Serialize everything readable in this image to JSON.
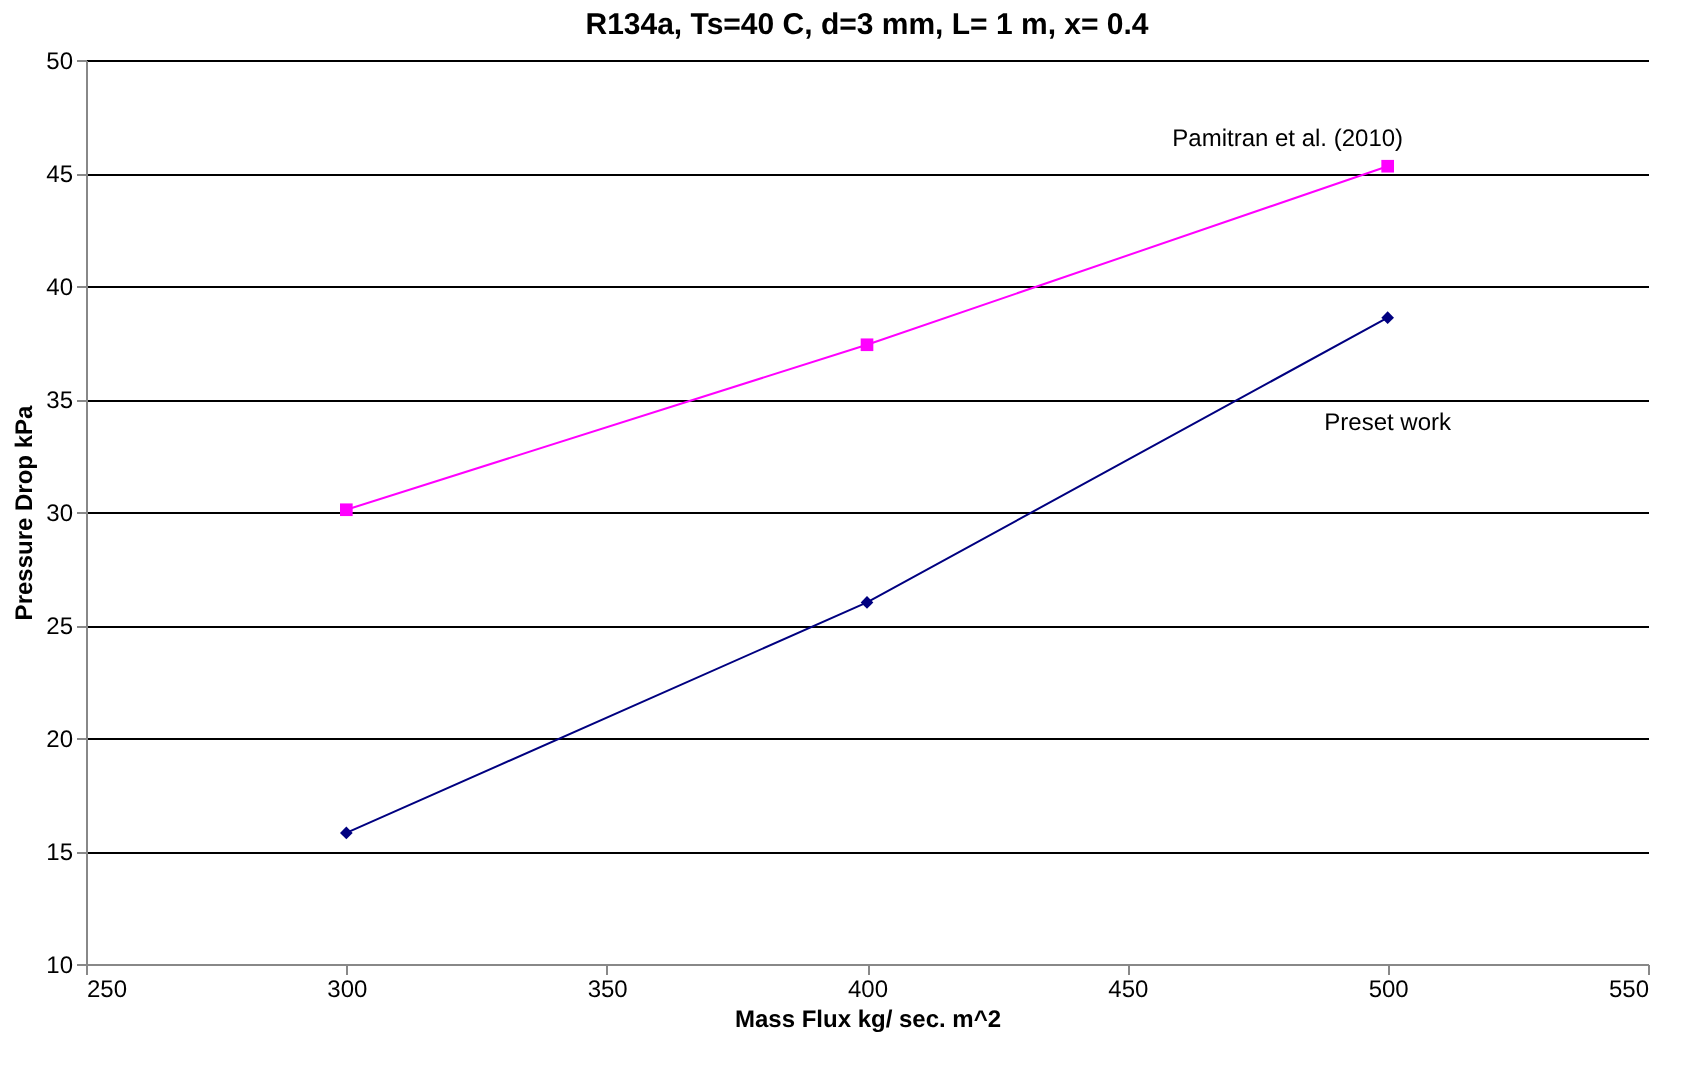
{
  "chart_data": {
    "type": "line",
    "title": "R134a, Ts=40 C, d=3 mm, L= 1 m, x= 0.4",
    "xlabel": "Mass Flux  kg/ sec. m^2",
    "ylabel": "Pressure Drop  kPa",
    "x": [
      300,
      400,
      500
    ],
    "series": [
      {
        "name": "Pamitran et al. (2010)",
        "color": "#ff00ff",
        "values": [
          30.1,
          37.4,
          45.3
        ],
        "marker": "square"
      },
      {
        "name": "Preset work",
        "color": "#000080",
        "values": [
          15.8,
          26.0,
          38.6
        ],
        "marker": "diamond"
      }
    ],
    "xlim": [
      250,
      550
    ],
    "xticks": [
      250,
      300,
      350,
      400,
      450,
      500,
      550
    ],
    "ylim": [
      10,
      50
    ],
    "yticks": [
      10,
      15,
      20,
      25,
      30,
      35,
      40,
      45,
      50
    ],
    "grid": "y",
    "legend": false
  }
}
